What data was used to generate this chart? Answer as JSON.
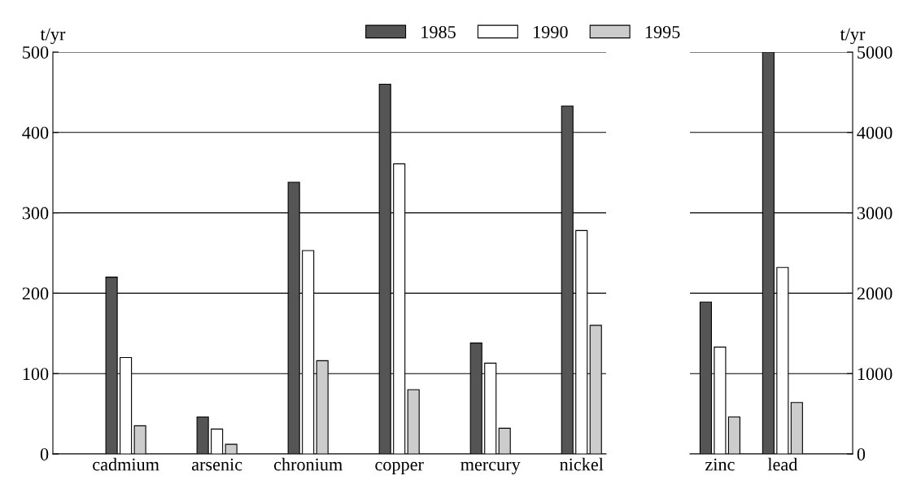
{
  "chart_data": [
    {
      "type": "bar",
      "ylabel": "t/yr",
      "categories": [
        "cadmium",
        "arsenic",
        "chronium",
        "copper",
        "mercury",
        "nickel"
      ],
      "series": [
        {
          "name": "1985",
          "color": "#555555",
          "values": [
            220,
            46,
            338,
            460,
            138,
            433
          ]
        },
        {
          "name": "1990",
          "color": "#ffffff",
          "values": [
            120,
            31,
            253,
            361,
            113,
            278
          ]
        },
        {
          "name": "1995",
          "color": "#cccccc",
          "values": [
            35,
            12,
            116,
            80,
            32,
            160
          ]
        }
      ],
      "ylim": [
        0,
        500
      ],
      "yticks": [
        0,
        100,
        200,
        300,
        400,
        500
      ],
      "grid": "y",
      "legend": "top"
    },
    {
      "type": "bar",
      "y2label": "t/yr",
      "categories": [
        "zinc",
        "lead"
      ],
      "series": [
        {
          "color": "#555555",
          "values": [
            1890,
            5000
          ],
          "axis": "y2"
        },
        {
          "color": "#ffffff",
          "values": [
            1330,
            2320
          ],
          "axis": "y2"
        },
        {
          "color": "#cccccc",
          "values": [
            460,
            640
          ],
          "axis": "y2"
        }
      ],
      "y2lim": [
        0,
        5000
      ],
      "y2ticks": [
        0,
        1000,
        2000,
        3000,
        4000,
        5000
      ],
      "grid": "y"
    }
  ]
}
